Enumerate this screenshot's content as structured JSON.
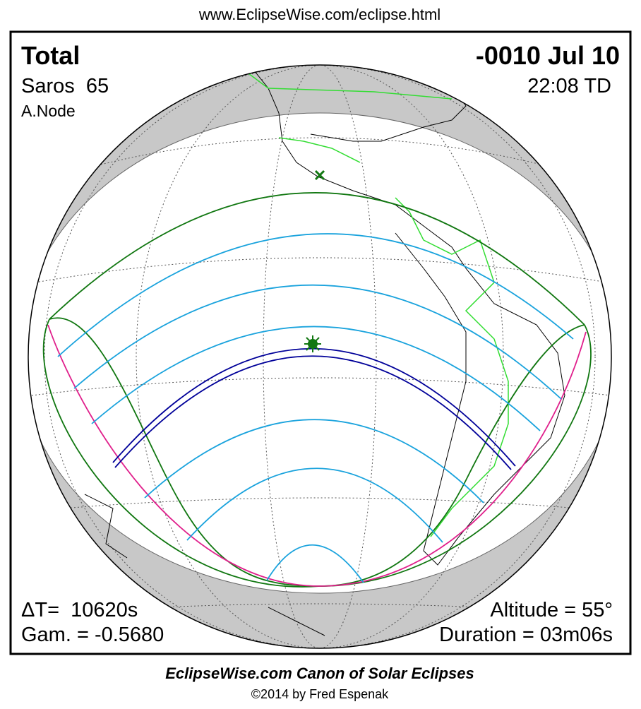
{
  "header": {
    "url": "www.EclipseWise.com/eclipse.html"
  },
  "map": {
    "type_label": "Total",
    "date": "-0010 Jul 10",
    "saros": "Saros  65",
    "time": "22:08 TD",
    "node": "A.Node",
    "delta_t": "ΔT=  10620s",
    "gamma": "Gam. = -0.5680",
    "altitude": "Altitude = 55°",
    "duration": "Duration = 03m06s"
  },
  "footer": {
    "title": "EclipseWise.com Canon of Solar Eclipses",
    "credit": "©2014 by Fred Espenak"
  }
}
